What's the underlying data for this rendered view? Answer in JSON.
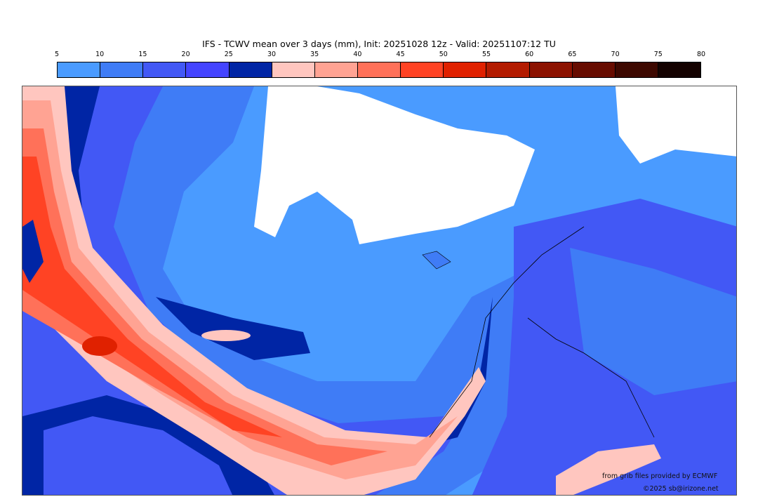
{
  "title": "IFS - TCWV mean over 3 days (mm), Init: 20251028 12z - Valid: 20251107:12 TU",
  "colorbar": {
    "ticks": [
      "5",
      "10",
      "15",
      "20",
      "25",
      "30",
      "35",
      "40",
      "45",
      "50",
      "55",
      "60",
      "65",
      "70",
      "75",
      "80"
    ],
    "colors": [
      "#4a9bff",
      "#3f7cf6",
      "#4258f5",
      "#4444ff",
      "#0025a5",
      "#ffc6bf",
      "#ffa393",
      "#ff7159",
      "#ff4324",
      "#e02100",
      "#b31b00",
      "#8c1200",
      "#670c00",
      "#3d0800",
      "#140200"
    ]
  },
  "credits": {
    "source": "from grib files provided by ECMWF",
    "copyright": "©2025 sb@irizone.net"
  }
}
